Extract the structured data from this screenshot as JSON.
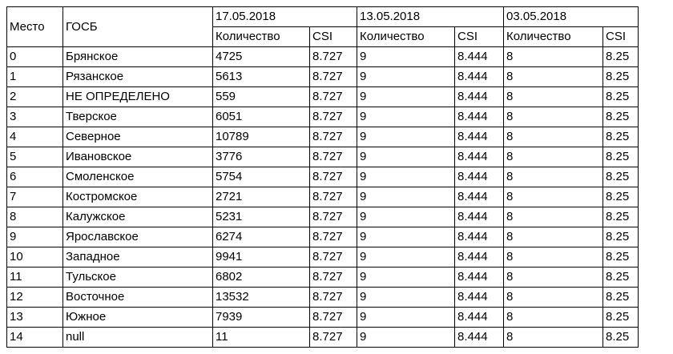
{
  "headers": {
    "place": "Место",
    "gosb": "ГОСБ",
    "dates": [
      "17.05.2018",
      "13.05.2018",
      "03.05.2018"
    ],
    "quantity": "Количество",
    "csi": "CSI"
  },
  "rows": [
    {
      "place": "0",
      "gosb": "Брянское",
      "q1": "4725",
      "s1": "8.727",
      "q2": "9",
      "s2": "8.444",
      "q3": "8",
      "s3": "8.25"
    },
    {
      "place": "1",
      "gosb": "Рязанское",
      "q1": "5613",
      "s1": "8.727",
      "q2": "9",
      "s2": "8.444",
      "q3": "8",
      "s3": "8.25"
    },
    {
      "place": "2",
      "gosb": "НЕ ОПРЕДЕЛЕНО",
      "q1": "559",
      "s1": "8.727",
      "q2": "9",
      "s2": "8.444",
      "q3": "8",
      "s3": "8.25"
    },
    {
      "place": "3",
      "gosb": "Тверское",
      "q1": "6051",
      "s1": "8.727",
      "q2": "9",
      "s2": "8.444",
      "q3": "8",
      "s3": "8.25"
    },
    {
      "place": "4",
      "gosb": "Северное",
      "q1": "10789",
      "s1": "8.727",
      "q2": "9",
      "s2": "8.444",
      "q3": "8",
      "s3": "8.25"
    },
    {
      "place": "5",
      "gosb": "Ивановское",
      "q1": "3776",
      "s1": "8.727",
      "q2": "9",
      "s2": "8.444",
      "q3": "8",
      "s3": "8.25"
    },
    {
      "place": "6",
      "gosb": "Смоленское",
      "q1": "5754",
      "s1": "8.727",
      "q2": "9",
      "s2": "8.444",
      "q3": "8",
      "s3": "8.25"
    },
    {
      "place": "7",
      "gosb": "Костромское",
      "q1": "2721",
      "s1": "8.727",
      "q2": "9",
      "s2": "8.444",
      "q3": "8",
      "s3": "8.25"
    },
    {
      "place": "8",
      "gosb": "Калужское",
      "q1": "5231",
      "s1": "8.727",
      "q2": "9",
      "s2": "8.444",
      "q3": "8",
      "s3": "8.25"
    },
    {
      "place": "9",
      "gosb": "Ярославское",
      "q1": "6274",
      "s1": "8.727",
      "q2": "9",
      "s2": "8.444",
      "q3": "8",
      "s3": "8.25"
    },
    {
      "place": "10",
      "gosb": "Западное",
      "q1": "9941",
      "s1": "8.727",
      "q2": "9",
      "s2": "8.444",
      "q3": "8",
      "s3": "8.25"
    },
    {
      "place": "11",
      "gosb": "Тульское",
      "q1": "6802",
      "s1": "8.727",
      "q2": "9",
      "s2": "8.444",
      "q3": "8",
      "s3": "8.25"
    },
    {
      "place": "12",
      "gosb": "Восточное",
      "q1": "13532",
      "s1": "8.727",
      "q2": "9",
      "s2": "8.444",
      "q3": "8",
      "s3": "8.25"
    },
    {
      "place": "13",
      "gosb": "Южное",
      "q1": "7939",
      "s1": "8.727",
      "q2": "9",
      "s2": "8.444",
      "q3": "8",
      "s3": "8.25"
    },
    {
      "place": "14",
      "gosb": "null",
      "q1": "11",
      "s1": "8.727",
      "q2": "9",
      "s2": "8.444",
      "q3": "8",
      "s3": "8.25"
    }
  ]
}
